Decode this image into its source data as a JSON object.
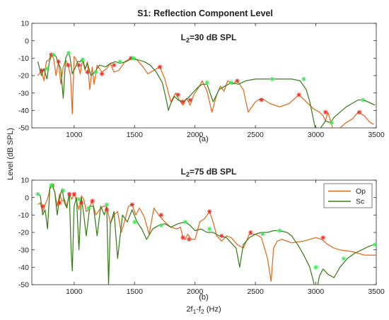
{
  "figure": {
    "title_main": "S1: Reflection Component Level",
    "ylabel": "Level (dB SPL)",
    "xlabel": {
      "main": "2f",
      "sub1": "1",
      "mid": "-f",
      "sub2": "2",
      "tail": " (Hz)"
    },
    "colors": {
      "Op": "#e06a1f",
      "Sc": "#3a7d1a",
      "marker_op": "#e8302a",
      "marker_sc": "#3ee85a"
    }
  },
  "chart_data": [
    {
      "type": "line",
      "panel_label": "(a)",
      "title": {
        "prefix": "L",
        "sub": "2",
        "suffix": "=30 dB SPL"
      },
      "xlim": [
        650,
        3500
      ],
      "ylim": [
        -50,
        10
      ],
      "xticks": [
        1000,
        1500,
        2000,
        2500,
        3000,
        3500
      ],
      "yticks": [
        10,
        0,
        -10,
        -20,
        -30,
        -40,
        -50
      ],
      "series": [
        {
          "name": "Op",
          "x": [
            700,
            730,
            750,
            770,
            790,
            810,
            830,
            850,
            870,
            890,
            910,
            930,
            950,
            970,
            985,
            1000,
            1010,
            1030,
            1050,
            1070,
            1090,
            1110,
            1130,
            1150,
            1165,
            1190,
            1230,
            1270,
            1300,
            1330,
            1370,
            1420,
            1470,
            1520,
            1570,
            1610,
            1660,
            1710,
            1750,
            1800,
            1840,
            1870,
            1900,
            1930,
            1960,
            1990,
            2020,
            2060,
            2100,
            2140,
            2180,
            2210,
            2240,
            2270,
            2310,
            2350,
            2400,
            2440,
            2470,
            2500,
            2550,
            2620,
            2700,
            2780,
            2860,
            2920,
            2980,
            3030,
            3060,
            3080,
            3100,
            3130,
            3160,
            3200,
            3250,
            3300,
            3350,
            3400,
            3450,
            3480
          ],
          "y": [
            -20,
            -17,
            -23,
            -12,
            -11,
            -8,
            -10,
            -20,
            -12,
            -25,
            -15,
            -11,
            -14,
            -20,
            -42,
            -9,
            -10,
            -13,
            -19,
            -11,
            -17,
            -12,
            -28,
            -15,
            -25,
            -14,
            -18,
            -16,
            -13,
            -18,
            -17,
            -12,
            -10,
            -11,
            -15,
            -19,
            -17,
            -15,
            -22,
            -35,
            -30,
            -34,
            -37,
            -33,
            -37,
            -31,
            -28,
            -23,
            -29,
            -41,
            -31,
            -26,
            -29,
            -23,
            -25,
            -23,
            -28,
            -41,
            -38,
            -35,
            -33,
            -36,
            -38,
            -36,
            -31,
            -35,
            -39,
            -41,
            -43,
            -46,
            -41,
            -48,
            -55,
            -50,
            -47,
            -45,
            -41,
            -43,
            -47,
            -48
          ]
        },
        {
          "name": "Sc",
          "x": [
            700,
            730,
            750,
            775,
            795,
            810,
            830,
            850,
            870,
            890,
            910,
            930,
            950,
            965,
            985,
            1005,
            1030,
            1050,
            1070,
            1090,
            1110,
            1140,
            1170,
            1210,
            1260,
            1300,
            1340,
            1380,
            1430,
            1480,
            1530,
            1580,
            1630,
            1680,
            1730,
            1760,
            1780,
            1800,
            1830,
            1860,
            1900,
            1940,
            1980,
            2020,
            2060,
            2100,
            2150,
            2200,
            2250,
            2300,
            2360,
            2420,
            2500,
            2600,
            2650,
            2700,
            2800,
            2870,
            2920,
            2950,
            2980,
            3010,
            3040,
            3080,
            3120,
            3150,
            3200,
            3250,
            3300,
            3350,
            3390,
            3430,
            3460,
            3490
          ],
          "y": [
            -12,
            -20,
            -16,
            -22,
            -12,
            -9,
            -8,
            -9,
            -13,
            -16,
            -33,
            -10,
            -7,
            -9,
            -19,
            -16,
            -12,
            -12,
            -10,
            -16,
            -13,
            -20,
            -18,
            -14,
            -15,
            -13,
            -12,
            -13,
            -12,
            -10,
            -11,
            -12,
            -14,
            -18,
            -24,
            -33,
            -40,
            -36,
            -32,
            -34,
            -35,
            -33,
            -30,
            -27,
            -25,
            -25,
            -35,
            -28,
            -26,
            -24,
            -25,
            -23,
            -22,
            -22,
            -22,
            -22,
            -22,
            -23,
            -28,
            -35,
            -45,
            -55,
            -50,
            -46,
            -47,
            -44,
            -41,
            -38,
            -36,
            -34,
            -34,
            -35,
            -36,
            -37
          ]
        }
      ],
      "markers": {
        "Op": [
          [
            730,
            -17
          ],
          [
            810,
            -8
          ],
          [
            870,
            -12
          ],
          [
            950,
            -14
          ],
          [
            1040,
            -14
          ],
          [
            1110,
            -18
          ],
          [
            1230,
            -19
          ],
          [
            1330,
            -14
          ],
          [
            1470,
            -10
          ],
          [
            1710,
            -15
          ],
          [
            1860,
            -31
          ],
          [
            1900,
            -35
          ],
          [
            1960,
            -34
          ],
          [
            2350,
            -23
          ],
          [
            2550,
            -34
          ],
          [
            2860,
            -31
          ],
          [
            3080,
            -41
          ],
          [
            3360,
            -41
          ]
        ],
        "Sc": [
          [
            775,
            -16
          ],
          [
            830,
            -8
          ],
          [
            955,
            -7
          ],
          [
            1070,
            -11
          ],
          [
            1180,
            -18
          ],
          [
            1380,
            -12
          ],
          [
            1490,
            -10
          ],
          [
            2100,
            -24
          ],
          [
            2300,
            -24
          ],
          [
            2640,
            -22
          ],
          [
            2900,
            -22
          ],
          [
            3130,
            -47
          ],
          [
            3390,
            -34
          ]
        ]
      }
    },
    {
      "type": "line",
      "panel_label": "(b)",
      "title": {
        "prefix": "L",
        "sub": "2",
        "suffix": "=75 dB SPL"
      },
      "xlim": [
        650,
        3500
      ],
      "ylim": [
        -50,
        10
      ],
      "xticks": [
        1000,
        1500,
        2000,
        2500,
        3000,
        3500
      ],
      "yticks": [
        10,
        0,
        -10,
        -20,
        -30,
        -40,
        -50
      ],
      "legend": {
        "placement": "top-right",
        "entries": [
          "Op",
          "Sc"
        ]
      },
      "series": [
        {
          "name": "Op",
          "x": [
            700,
            720,
            740,
            760,
            780,
            800,
            820,
            840,
            860,
            880,
            900,
            920,
            940,
            960,
            980,
            1000,
            1020,
            1040,
            1060,
            1080,
            1100,
            1120,
            1150,
            1180,
            1210,
            1240,
            1270,
            1300,
            1330,
            1360,
            1390,
            1420,
            1450,
            1480,
            1510,
            1540,
            1580,
            1620,
            1660,
            1700,
            1750,
            1800,
            1850,
            1880,
            1900,
            1920,
            1940,
            1970,
            2000,
            2040,
            2080,
            2120,
            2150,
            2180,
            2220,
            2260,
            2300,
            2350,
            2400,
            2450,
            2500,
            2550,
            2600,
            2630,
            2650,
            2680,
            2720,
            2800,
            2900,
            3000,
            3050,
            3100,
            3150,
            3200,
            3300,
            3400,
            3500
          ],
          "y": [
            -4,
            -3,
            -8,
            -4,
            -1,
            5,
            7,
            3,
            -5,
            2,
            -2,
            -1,
            -5,
            2,
            -1,
            2,
            -2,
            -7,
            1,
            -1,
            -8,
            -7,
            -2,
            -10,
            -7,
            -5,
            -5,
            -15,
            -10,
            -8,
            -20,
            -13,
            -5,
            -4,
            -10,
            -6,
            -11,
            -21,
            -6,
            -10,
            -14,
            -17,
            -18,
            -17,
            -23,
            -24,
            -21,
            -24,
            -24,
            -14,
            -12,
            -8,
            -14,
            -22,
            -25,
            -22,
            -23,
            -27,
            -29,
            -21,
            -21,
            -23,
            -35,
            -48,
            -29,
            -25,
            -24,
            -26,
            -25,
            -23,
            -24,
            -27,
            -29,
            -30,
            -31,
            -33,
            -33
          ]
        },
        {
          "name": "Sc",
          "x": [
            700,
            720,
            740,
            760,
            780,
            800,
            820,
            840,
            860,
            880,
            900,
            920,
            940,
            960,
            975,
            985,
            1000,
            1020,
            1040,
            1060,
            1080,
            1100,
            1130,
            1160,
            1190,
            1220,
            1250,
            1270,
            1285,
            1300,
            1330,
            1360,
            1400,
            1440,
            1480,
            1520,
            1560,
            1600,
            1650,
            1700,
            1750,
            1800,
            1860,
            1920,
            1960,
            2000,
            2050,
            2100,
            2150,
            2200,
            2260,
            2300,
            2340,
            2370,
            2400,
            2450,
            2500,
            2550,
            2600,
            2650,
            2700,
            2760,
            2800,
            2850,
            2900,
            2950,
            2980,
            3000,
            3010,
            3030,
            3060,
            3100,
            3150,
            3200,
            3260,
            3320,
            3380,
            3440,
            3480,
            3500
          ],
          "y": [
            2,
            1,
            -10,
            -7,
            -18,
            6,
            7,
            3,
            -10,
            0,
            5,
            -3,
            -6,
            3,
            -30,
            -42,
            -5,
            0,
            -30,
            0,
            -10,
            -22,
            -5,
            -5,
            -22,
            -5,
            -10,
            -5,
            -50,
            -15,
            -8,
            -35,
            -10,
            -14,
            -7,
            -14,
            -18,
            -24,
            -18,
            -16,
            -15,
            -17,
            -15,
            -14,
            -16,
            -19,
            -18,
            -20,
            -20,
            -22,
            -23,
            -26,
            -29,
            -40,
            -27,
            -23,
            -21,
            -20,
            -20,
            -19,
            -19,
            -20,
            -22,
            -27,
            -33,
            -40,
            -48,
            -55,
            -52,
            -45,
            -41,
            -44,
            -46,
            -40,
            -35,
            -32,
            -30,
            -28,
            -27,
            -27
          ]
        }
      ],
      "markers": {
        "Op": [
          [
            740,
            -5
          ],
          [
            820,
            7
          ],
          [
            880,
            -3
          ],
          [
            960,
            2
          ],
          [
            1000,
            2
          ],
          [
            1060,
            -3
          ],
          [
            1150,
            -2
          ],
          [
            1270,
            -7
          ],
          [
            1480,
            -4
          ],
          [
            1720,
            -10
          ],
          [
            1900,
            -23
          ],
          [
            1950,
            -24
          ],
          [
            2120,
            -8
          ],
          [
            2220,
            -22
          ],
          [
            2460,
            -20
          ],
          [
            3060,
            -23
          ]
        ],
        "Sc": [
          [
            700,
            2
          ],
          [
            810,
            7
          ],
          [
            910,
            4
          ],
          [
            1040,
            -1
          ],
          [
            1120,
            -6
          ],
          [
            1270,
            -4
          ],
          [
            1500,
            -14
          ],
          [
            1720,
            -16
          ],
          [
            1920,
            -14
          ],
          [
            2120,
            -18
          ],
          [
            2560,
            -21
          ],
          [
            2700,
            -19
          ],
          [
            3000,
            -40
          ],
          [
            3230,
            -35
          ],
          [
            3490,
            -27
          ]
        ]
      }
    }
  ]
}
